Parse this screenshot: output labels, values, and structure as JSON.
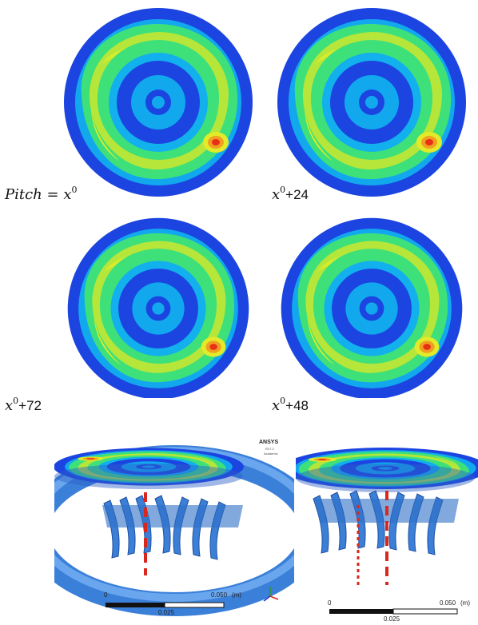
{
  "colors": {
    "ring_outer": "#1c44e0",
    "ring_cyan": "#10b6f0",
    "ring_green": "#3ee07a",
    "ring_yellow": "#d6ea2a",
    "hot": "#e83018",
    "turbine": "#3c7fd6",
    "dash": "#d8281e"
  },
  "panels": [
    {
      "name": "top-left",
      "label_var": "Pitch",
      "label_eq": " = ",
      "label_base": "x",
      "label_exp": "0",
      "label_suffix": ""
    },
    {
      "name": "top-right",
      "label_var": "",
      "label_eq": "",
      "label_base": "x",
      "label_exp": "0",
      "label_suffix": "+24"
    },
    {
      "name": "mid-left",
      "label_var": "",
      "label_eq": "",
      "label_base": "x",
      "label_exp": "0",
      "label_suffix": "+72"
    },
    {
      "name": "mid-right",
      "label_var": "",
      "label_eq": "",
      "label_base": "x",
      "label_exp": "0",
      "label_suffix": "+48"
    }
  ],
  "bottom_left": {
    "brand": "ANSYS",
    "version": "R17.2",
    "edition": "Academic",
    "scale_zero": "0",
    "scale_mid": "0.025",
    "scale_max": "0.050",
    "scale_unit": "(m)",
    "axis_icon": "xyz-axis-triad-icon"
  },
  "bottom_right": {
    "scale_zero": "0",
    "scale_mid": "0.025",
    "scale_max": "0.050",
    "scale_unit": "(m)"
  }
}
